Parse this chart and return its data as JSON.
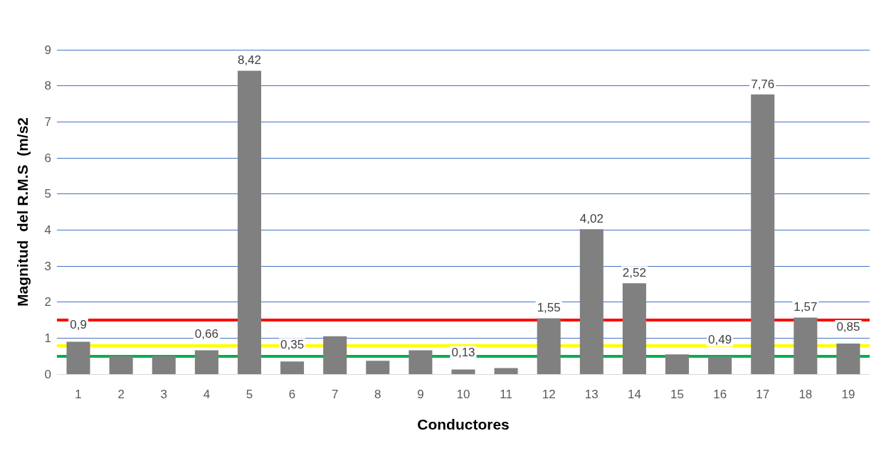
{
  "chart_data": {
    "type": "bar",
    "xlabel": "Conductores",
    "ylabel": "Magnitud  del R.M.S  (m/s2",
    "categories": [
      "1",
      "2",
      "3",
      "4",
      "5",
      "6",
      "7",
      "8",
      "9",
      "10",
      "11",
      "12",
      "13",
      "14",
      "15",
      "16",
      "17",
      "18",
      "19"
    ],
    "values": [
      0.9,
      0.5,
      0.5,
      0.66,
      8.42,
      0.35,
      1.05,
      0.37,
      0.66,
      0.13,
      0.17,
      1.55,
      4.02,
      2.52,
      0.55,
      0.49,
      7.76,
      1.57,
      0.85
    ],
    "value_labels": [
      "0,9",
      null,
      null,
      "0,66",
      "8,42",
      "0,35",
      null,
      null,
      null,
      "0,13",
      null,
      "1,55",
      "4,02",
      "2,52",
      null,
      "0,49",
      "7,76",
      "1,57",
      "0,85"
    ],
    "color": "#808080",
    "ylim": [
      0,
      9
    ],
    "yticks": [
      0,
      1,
      2,
      3,
      4,
      5,
      6,
      7,
      8,
      9
    ],
    "grid": "y",
    "ref_lines": [
      {
        "axis": "y",
        "value": 1.5,
        "color": "#ff0000"
      },
      {
        "axis": "y",
        "value": 0.8,
        "color": "#ffff00"
      },
      {
        "axis": "y",
        "value": 0.5,
        "color": "#00b050"
      }
    ]
  }
}
